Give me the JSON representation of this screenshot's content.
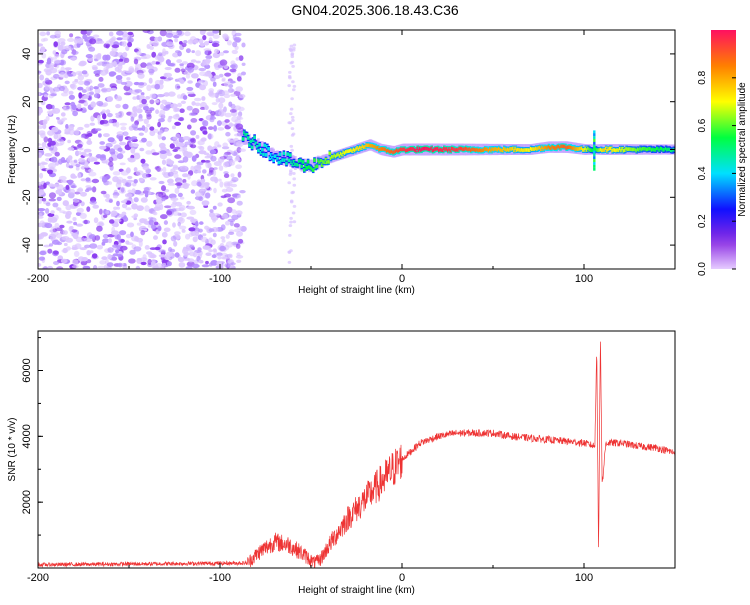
{
  "title": "GN04.2025.306.18.43.C36",
  "chart_data": [
    {
      "type": "heatmap",
      "name": "spectrogram",
      "xlabel": "Height of straight line (km)",
      "ylabel": "Frequency (Hz)",
      "xlim": [
        -200,
        150
      ],
      "ylim": [
        -50,
        50
      ],
      "xticks": [
        -200,
        -100,
        0,
        100
      ],
      "yticks": [
        -40,
        -20,
        0,
        20,
        40
      ],
      "colorbar": {
        "label": "Normalized spectral amplitude",
        "range": [
          0,
          1
        ],
        "ticks": [
          0.0,
          0.2,
          0.4,
          0.6,
          0.8
        ],
        "tick_labels": [
          "0.0",
          "0.2",
          "0.4",
          "0.6",
          "0.8"
        ]
      },
      "noise_region": {
        "x_range": [
          -200,
          -87
        ],
        "secondary_band_x": [
          -62,
          -59
        ]
      },
      "ridge": {
        "x": [
          -88,
          -80,
          -72,
          -65,
          -58,
          -52,
          -45,
          -38,
          -30,
          -22,
          -18,
          -12,
          -5,
          0,
          10,
          30,
          50,
          70,
          80,
          90,
          100,
          105,
          110,
          130,
          150
        ],
        "freq": [
          5,
          2,
          -2,
          -4,
          -6,
          -7,
          -5,
          -3,
          -1,
          1,
          2,
          0,
          -1,
          0,
          0,
          0,
          0,
          0,
          1,
          1,
          0,
          0,
          0,
          0,
          0
        ],
        "amplitude": [
          0.5,
          0.45,
          0.4,
          0.45,
          0.5,
          0.55,
          0.6,
          0.65,
          0.7,
          0.75,
          0.8,
          0.85,
          0.9,
          0.95,
          1.0,
          0.95,
          0.8,
          0.7,
          0.85,
          0.9,
          0.7,
          0.5,
          0.75,
          0.6,
          0.5
        ]
      }
    },
    {
      "type": "line",
      "name": "snr",
      "xlabel": "Height of straight line (km)",
      "ylabel": "SNR (10 * v/v)",
      "xlim": [
        -200,
        150
      ],
      "ylim": [
        0,
        7200
      ],
      "xticks": [
        -200,
        -100,
        0,
        100
      ],
      "yticks": [
        2000,
        4000,
        6000
      ],
      "color": "#ee3333",
      "envelope": {
        "x": [
          -200,
          -85,
          -78,
          -70,
          -62,
          -55,
          -48,
          -45,
          -40,
          -30,
          -20,
          -10,
          0,
          10,
          20,
          30,
          40,
          50,
          60,
          80,
          100,
          106,
          107,
          108,
          109,
          110,
          112,
          120,
          130,
          140,
          150
        ],
        "y": [
          100,
          150,
          500,
          800,
          700,
          450,
          150,
          250,
          700,
          1500,
          2100,
          2700,
          3300,
          3800,
          4000,
          4100,
          4100,
          4100,
          4000,
          3900,
          3800,
          3700,
          6800,
          400,
          7200,
          2500,
          3800,
          3800,
          3700,
          3650,
          3500
        ]
      }
    }
  ]
}
